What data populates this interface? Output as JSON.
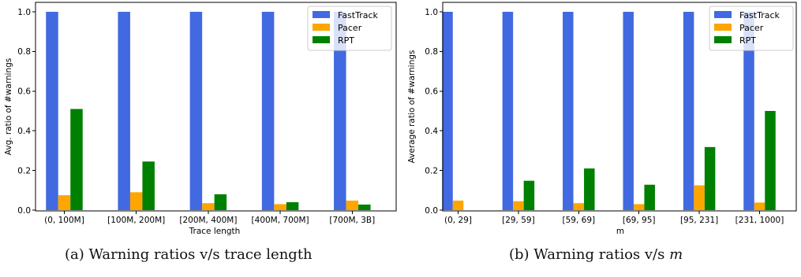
{
  "chart_data": [
    {
      "type": "bar",
      "caption": "(a) Warning ratios v/s trace length",
      "xlabel": "Trace length",
      "ylabel": "Avg. ratio of #warnings",
      "ylim": [
        0,
        1.0
      ],
      "yticks": [
        "0.0",
        "0.2",
        "0.4",
        "0.6",
        "0.8",
        "1.0"
      ],
      "categories": [
        "(0, 100M]",
        "[100M, 200M]",
        "[200M, 400M]",
        "[400M, 700M]",
        "[700M, 3B]"
      ],
      "series": [
        {
          "name": "FastTrack",
          "color": "#4169e1",
          "values": [
            1.0,
            1.0,
            1.0,
            1.0,
            1.0
          ]
        },
        {
          "name": "Pacer",
          "color": "#ffa500",
          "values": [
            0.075,
            0.09,
            0.035,
            0.03,
            0.048
          ]
        },
        {
          "name": "RPT",
          "color": "#008000",
          "values": [
            0.51,
            0.245,
            0.08,
            0.04,
            0.028
          ]
        }
      ],
      "legend": "top-right",
      "grid": false
    },
    {
      "type": "bar",
      "caption_prefix": "(b) Warning ratios v/s ",
      "caption_var": "m",
      "xlabel": "m",
      "ylabel": "Average ratio of #warnings",
      "ylim": [
        0,
        1.0
      ],
      "yticks": [
        "0.0",
        "0.2",
        "0.4",
        "0.6",
        "0.8",
        "1.0"
      ],
      "categories": [
        "(0, 29]",
        "[29, 59]",
        "[59, 69]",
        "[69, 95]",
        "[95, 231]",
        "[231, 1000]"
      ],
      "series": [
        {
          "name": "FastTrack",
          "color": "#4169e1",
          "values": [
            1.0,
            1.0,
            1.0,
            1.0,
            1.0,
            1.0
          ]
        },
        {
          "name": "Pacer",
          "color": "#ffa500",
          "values": [
            0.048,
            0.045,
            0.035,
            0.03,
            0.125,
            0.038
          ]
        },
        {
          "name": "RPT",
          "color": "#008000",
          "values": [
            0.0,
            0.148,
            0.21,
            0.128,
            0.318,
            0.5
          ]
        }
      ],
      "legend": "top-right",
      "grid": false
    }
  ]
}
